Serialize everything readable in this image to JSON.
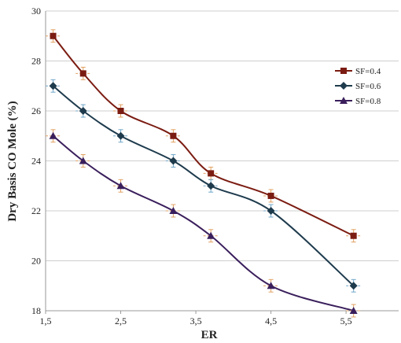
{
  "chart_data": {
    "type": "line",
    "xlabel": "ER",
    "ylabel": "Dry Basis CO Mole (%)",
    "xlim": [
      1.5,
      6.2
    ],
    "ylim": [
      18,
      30
    ],
    "x_ticks": [
      1.5,
      2.5,
      3.5,
      4.5,
      5.5
    ],
    "x_tick_labels": [
      "1,5",
      "2,5",
      "3,5",
      "4,5",
      "5,5"
    ],
    "y_ticks": [
      18,
      20,
      22,
      24,
      26,
      28,
      30
    ],
    "y_tick_labels": [
      "18",
      "20",
      "22",
      "24",
      "26",
      "28",
      "30"
    ],
    "grid": "horizontal",
    "legend_position": "right",
    "x_error": 0.1,
    "y_error": 0.25,
    "series": [
      {
        "name": "SF=0.4",
        "marker": "square",
        "color": "#7b1c12",
        "error_color": "#e0a060",
        "x": [
          1.6,
          2.0,
          2.5,
          3.2,
          3.7,
          4.5,
          5.6
        ],
        "y": [
          29.0,
          27.5,
          26.0,
          25.0,
          23.5,
          22.6,
          21.0
        ]
      },
      {
        "name": "SF=0.6",
        "marker": "diamond",
        "color": "#1e3b4d",
        "error_color": "#6fa6c8",
        "x": [
          1.6,
          2.0,
          2.5,
          3.2,
          3.7,
          4.5,
          5.6
        ],
        "y": [
          27.0,
          26.0,
          25.0,
          24.0,
          23.0,
          22.0,
          19.0
        ]
      },
      {
        "name": "SF=0.8",
        "marker": "triangle",
        "color": "#3a1f5c",
        "error_color": "#e0a060",
        "x": [
          1.6,
          2.0,
          2.5,
          3.2,
          3.7,
          4.5,
          5.6
        ],
        "y": [
          25.0,
          24.0,
          23.0,
          22.0,
          21.0,
          19.0,
          18.0
        ]
      }
    ]
  }
}
